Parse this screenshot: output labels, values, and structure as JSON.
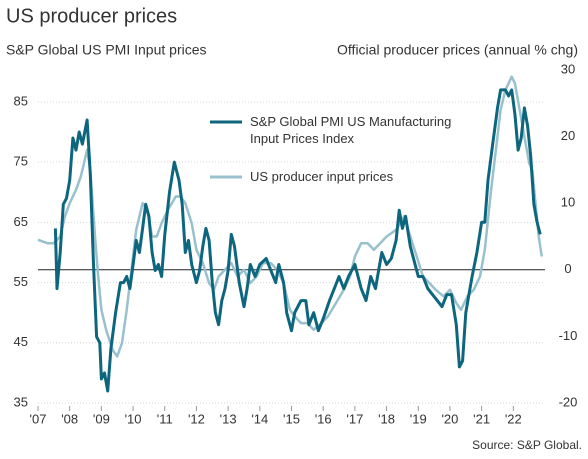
{
  "chart_data": {
    "type": "line",
    "title": "US producer prices",
    "y_label": "S&P Global US PMI Input prices",
    "y2_label": "Official producer prices (annual % chg)",
    "source": "Source: S&P Global.",
    "xlim": [
      2007,
      2023
    ],
    "xticks": [
      {
        "value": 2007,
        "label": "'07"
      },
      {
        "value": 2008,
        "label": "'08"
      },
      {
        "value": 2009,
        "label": "'09"
      },
      {
        "value": 2010,
        "label": "'10"
      },
      {
        "value": 2011,
        "label": "'11"
      },
      {
        "value": 2012,
        "label": "'12"
      },
      {
        "value": 2013,
        "label": "'13"
      },
      {
        "value": 2014,
        "label": "'14"
      },
      {
        "value": 2015,
        "label": "'15"
      },
      {
        "value": 2016,
        "label": "'16"
      },
      {
        "value": 2017,
        "label": "'17"
      },
      {
        "value": 2018,
        "label": "'18"
      },
      {
        "value": 2019,
        "label": "'19"
      },
      {
        "value": 2020,
        "label": "'20"
      },
      {
        "value": 2021,
        "label": "'21"
      },
      {
        "value": 2022,
        "label": "'22"
      }
    ],
    "ylim": [
      35,
      90.3
    ],
    "yticks": [
      35,
      45,
      55,
      65,
      75,
      85
    ],
    "y2lim": [
      -20,
      30
    ],
    "y2ticks": [
      -20,
      -10,
      0,
      10,
      20,
      30
    ],
    "grid": true,
    "series": [
      {
        "name": "S&P Global PMI US Manufacturing Input Prices Index",
        "color": "#0d667d",
        "axis": "y",
        "x": [
          2007.55,
          2007.6,
          2007.7,
          2007.8,
          2007.9,
          2008.0,
          2008.1,
          2008.2,
          2008.3,
          2008.4,
          2008.55,
          2008.65,
          2008.75,
          2008.85,
          2008.95,
          2009.0,
          2009.1,
          2009.2,
          2009.3,
          2009.45,
          2009.6,
          2009.7,
          2009.8,
          2009.9,
          2010.0,
          2010.1,
          2010.2,
          2010.3,
          2010.4,
          2010.5,
          2010.6,
          2010.7,
          2010.8,
          2010.9,
          2011.0,
          2011.15,
          2011.3,
          2011.45,
          2011.55,
          2011.65,
          2011.75,
          2011.85,
          2012.0,
          2012.1,
          2012.2,
          2012.3,
          2012.4,
          2012.5,
          2012.6,
          2012.7,
          2012.8,
          2012.9,
          2013.0,
          2013.1,
          2013.2,
          2013.35,
          2013.5,
          2013.6,
          2013.7,
          2013.85,
          2014.0,
          2014.2,
          2014.35,
          2014.5,
          2014.6,
          2014.75,
          2014.85,
          2015.0,
          2015.1,
          2015.3,
          2015.45,
          2015.55,
          2015.7,
          2015.85,
          2016.0,
          2016.2,
          2016.35,
          2016.5,
          2016.65,
          2016.8,
          2017.0,
          2017.2,
          2017.35,
          2017.5,
          2017.65,
          2017.75,
          2017.85,
          2018.0,
          2018.15,
          2018.3,
          2018.4,
          2018.5,
          2018.6,
          2018.75,
          2018.9,
          2019.0,
          2019.15,
          2019.3,
          2019.45,
          2019.6,
          2019.75,
          2019.9,
          2020.05,
          2020.2,
          2020.3,
          2020.4,
          2020.5,
          2020.6,
          2020.7,
          2020.85,
          2021.0,
          2021.1,
          2021.2,
          2021.35,
          2021.5,
          2021.6,
          2021.75,
          2021.85,
          2021.95,
          2022.05,
          2022.15,
          2022.25,
          2022.35,
          2022.45,
          2022.55,
          2022.65,
          2022.75,
          2022.85
        ],
        "values": [
          64,
          54,
          60,
          68,
          69,
          72,
          79,
          77,
          80,
          78,
          82,
          73,
          58,
          46,
          45,
          39,
          40,
          37,
          44,
          50,
          55,
          55,
          56,
          54,
          58,
          62,
          60,
          64,
          68,
          66,
          60,
          57,
          58,
          56,
          63,
          70,
          75,
          72,
          68,
          60,
          62,
          58,
          55,
          57,
          61,
          64,
          62,
          55,
          50,
          48,
          52,
          54,
          57,
          63,
          61,
          55,
          51,
          54,
          58,
          56,
          58,
          59,
          57,
          55,
          58,
          55,
          50,
          47,
          50,
          52,
          52,
          48,
          50,
          47,
          49,
          52,
          54,
          56,
          54,
          56,
          58,
          54,
          52,
          56,
          54,
          57,
          60,
          58,
          59,
          62,
          67,
          64,
          66,
          61,
          58,
          56,
          56,
          54,
          53,
          52,
          51,
          53,
          53,
          48,
          41,
          42,
          50,
          53,
          56,
          60,
          65,
          65,
          72,
          78,
          84,
          87,
          87,
          86,
          87,
          83,
          77,
          79,
          84,
          81,
          76,
          68,
          65,
          63
        ]
      },
      {
        "name": "US producer input prices",
        "color": "#98c1cd",
        "axis": "y2",
        "x": [
          2007.0,
          2007.3,
          2007.5,
          2007.7,
          2007.85,
          2008.0,
          2008.2,
          2008.35,
          2008.55,
          2008.65,
          2008.8,
          2008.9,
          2009.0,
          2009.15,
          2009.35,
          2009.5,
          2009.65,
          2009.8,
          2009.95,
          2010.1,
          2010.3,
          2010.45,
          2010.6,
          2010.75,
          2010.9,
          2011.1,
          2011.35,
          2011.5,
          2011.65,
          2011.85,
          2012.0,
          2012.2,
          2012.4,
          2012.55,
          2012.7,
          2012.9,
          2013.1,
          2013.3,
          2013.5,
          2013.7,
          2013.9,
          2014.1,
          2014.35,
          2014.55,
          2014.75,
          2014.95,
          2015.1,
          2015.3,
          2015.5,
          2015.7,
          2015.95,
          2016.15,
          2016.4,
          2016.65,
          2016.85,
          2017.0,
          2017.2,
          2017.4,
          2017.6,
          2017.8,
          2018.0,
          2018.3,
          2018.55,
          2018.75,
          2018.95,
          2019.15,
          2019.35,
          2019.55,
          2019.8,
          2020.0,
          2020.2,
          2020.35,
          2020.55,
          2020.75,
          2020.95,
          2021.1,
          2021.3,
          2021.45,
          2021.6,
          2021.75,
          2021.85,
          2021.95,
          2022.05,
          2022.2,
          2022.35,
          2022.5,
          2022.6,
          2022.7,
          2022.8,
          2022.9
        ],
        "values": [
          4.5,
          4,
          4,
          5,
          8,
          10,
          12,
          14,
          18,
          15,
          5,
          -1,
          -6,
          -9,
          -12,
          -13,
          -11,
          -6,
          0,
          6,
          10,
          9,
          5,
          5,
          7,
          9,
          11,
          11,
          10,
          7,
          3,
          1,
          -2,
          -3,
          -1,
          0,
          1,
          -1,
          0,
          -2,
          -1,
          1,
          1,
          0,
          -2,
          -6,
          -7,
          -8,
          -8,
          -9,
          -8,
          -7,
          -5,
          -3,
          -1,
          2,
          4,
          4,
          3,
          4,
          5,
          6,
          8,
          5,
          2,
          -1,
          -2,
          -3,
          -4,
          -3,
          -5,
          -6,
          -4,
          -3,
          -1,
          3,
          12,
          18,
          24,
          27,
          28,
          29,
          28,
          24,
          20,
          16,
          15,
          10,
          5,
          2
        ]
      }
    ]
  }
}
